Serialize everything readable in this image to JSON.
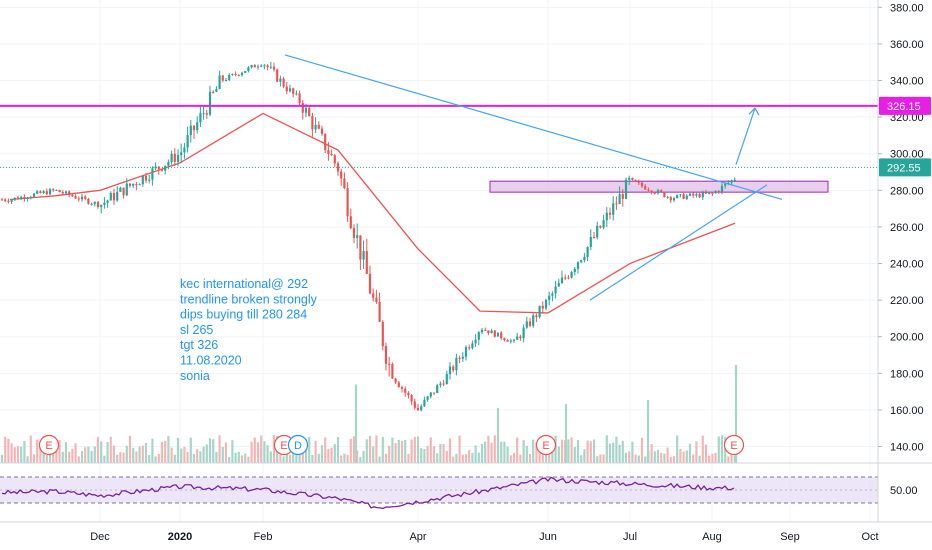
{
  "chart_data": [
    {
      "type": "candlestick",
      "annotation_lines": [
        "kec international@ 292",
        "trendline broken strongly",
        "dips buying till 280 284",
        "sl 265",
        "tgt 326",
        "11.08.2020",
        "sonia"
      ],
      "x_axis": {
        "ticks": [
          "Dec",
          "2020",
          "Feb",
          "Apr",
          "Jun",
          "Jul",
          "Aug",
          "Sep",
          "Oct"
        ]
      },
      "y_axis": {
        "ticks": [
          "380.00",
          "360.00",
          "340.00",
          "320.00",
          "300.00",
          "280.00",
          "260.00",
          "240.00",
          "220.00",
          "200.00",
          "180.00",
          "160.00",
          "140.00"
        ],
        "ylim": [
          131,
          384
        ]
      },
      "last_price": {
        "value": 292.55,
        "label": "292.55"
      },
      "horizontal_line": {
        "value": 326.15,
        "label": "326.15"
      },
      "support_zone": {
        "low": 279,
        "high": 285
      },
      "trendlines": [
        {
          "from": [
            "Feb 2020",
            354
          ],
          "to": [
            "Aug 2020",
            275
          ]
        },
        {
          "from": [
            "Jun 2020",
            220
          ],
          "to": [
            "Aug 2020",
            283
          ]
        }
      ],
      "target_arrow": {
        "from": 294,
        "to": 326
      },
      "moving_average": [
        {
          "date": "Oct 2019",
          "value": 275
        },
        {
          "date": "Nov 2019",
          "value": 277
        },
        {
          "date": "Dec 2019",
          "value": 280
        },
        {
          "date": "Jan 2020",
          "value": 295
        },
        {
          "date": "Feb 2020",
          "value": 322
        },
        {
          "date": "Mar 2020",
          "value": 302
        },
        {
          "date": "Apr 2020",
          "value": 248
        },
        {
          "date": "May 2020",
          "value": 214
        },
        {
          "date": "Jun 2020",
          "value": 213
        },
        {
          "date": "Jul 2020",
          "value": 240
        },
        {
          "date": "Aug 2020",
          "value": 262
        }
      ],
      "price_path": [
        {
          "date": "Oct 2019",
          "value": 275
        },
        {
          "date": "Nov 2019",
          "value": 280
        },
        {
          "date": "Dec 2019",
          "value": 272
        },
        {
          "date": "Jan 2020",
          "value": 300
        },
        {
          "date": "Jan 2020",
          "value": 340
        },
        {
          "date": "Feb 2020",
          "value": 350
        },
        {
          "date": "Feb 2020",
          "value": 328
        },
        {
          "date": "Mar 2020",
          "value": 292
        },
        {
          "date": "Mar 2020",
          "value": 238
        },
        {
          "date": "Mar 2020",
          "value": 180
        },
        {
          "date": "Apr 2020",
          "value": 160
        },
        {
          "date": "Apr 2020",
          "value": 180
        },
        {
          "date": "May 2020",
          "value": 205
        },
        {
          "date": "May 2020",
          "value": 197
        },
        {
          "date": "Jun 2020",
          "value": 220
        },
        {
          "date": "Jun 2020",
          "value": 250
        },
        {
          "date": "Jul 2020",
          "value": 285
        },
        {
          "date": "Jul 2020",
          "value": 276
        },
        {
          "date": "Aug 2020",
          "value": 278
        },
        {
          "date": "Aug 2020",
          "value": 292.55
        }
      ],
      "volume_spikes": [
        {
          "date": "Mar 2020",
          "value": 0.75
        },
        {
          "date": "May 2020",
          "value": 0.45
        },
        {
          "date": "Jun 2020",
          "value": 0.5
        },
        {
          "date": "Jul 2020",
          "value": 0.55
        },
        {
          "date": "Aug 2020",
          "value": 1.0
        }
      ],
      "earnings_markers": [
        "E",
        "E",
        "D",
        "E",
        "E"
      ]
    },
    {
      "type": "line",
      "y_axis": {
        "ticks": [
          "50.00"
        ],
        "band": [
          30,
          70
        ]
      },
      "values": [
        {
          "date": "Oct 2019",
          "value": 50
        },
        {
          "date": "Nov 2019",
          "value": 52
        },
        {
          "date": "Dec 2019",
          "value": 45
        },
        {
          "date": "Jan 2020",
          "value": 60
        },
        {
          "date": "Feb 2020",
          "value": 55
        },
        {
          "date": "Mar 2020",
          "value": 40
        },
        {
          "date": "Mar 2020",
          "value": 25
        },
        {
          "date": "Apr 2020",
          "value": 35
        },
        {
          "date": "May 2020",
          "value": 52
        },
        {
          "date": "Jun 2020",
          "value": 72
        },
        {
          "date": "Jul 2020",
          "value": 65
        },
        {
          "date": "Aug 2020",
          "value": 58
        }
      ]
    }
  ]
}
